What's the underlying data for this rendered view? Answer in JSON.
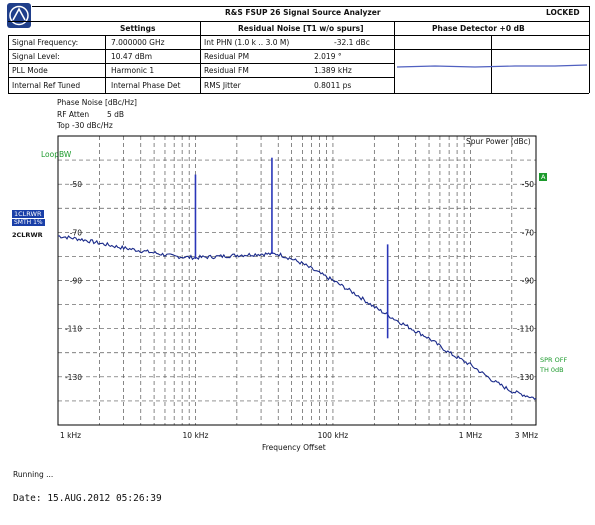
{
  "header": {
    "title": "R&S FSUP 26 Signal Source Analyzer",
    "status": "LOCKED"
  },
  "table": {
    "col_headers": [
      "Settings",
      "Residual Noise [T1 w/o spurs]",
      "Phase Detector +0 dB"
    ],
    "settings": [
      {
        "label": "Signal Frequency:",
        "value": "7.000000 GHz"
      },
      {
        "label": "Signal Level:",
        "value": "10.47 dBm"
      },
      {
        "label": "PLL Mode",
        "value": "Harmonic 1"
      },
      {
        "label": "Internal Ref Tuned",
        "value": "Internal Phase Det"
      }
    ],
    "residual": [
      {
        "label": "Int PHN (1.0 k .. 3.0 M)",
        "value": "-32.1 dBc"
      },
      {
        "label": "Residual PM",
        "value": "2.019 °"
      },
      {
        "label": "Residual FM",
        "value": "1.389 kHz"
      },
      {
        "label": "RMS Jitter",
        "value": "0.8011 ps"
      }
    ]
  },
  "plot_info": {
    "line1": "Phase Noise [dBc/Hz]",
    "line2_label": "RF Atten",
    "line2_value": "5 dB",
    "line3": "Top -30 dBc/Hz",
    "loopbw": "LoopBW",
    "spur_power": "Spur Power (dBc)",
    "trace1_badge": "1CLRWR",
    "trace1_sub": "SMTH 1%",
    "trace2_badge": "2CLRWR",
    "right_badge": "A",
    "spr_off": "SPR OFF",
    "th": "TH 0dB",
    "x_title": "Frequency Offset"
  },
  "chart_data": {
    "type": "line",
    "title": "Phase Noise [dBc/Hz]",
    "xlabel": "Frequency Offset",
    "ylabel": "",
    "x_scale": "log",
    "xlim_hz": [
      1000,
      3000000
    ],
    "ylim": [
      -150,
      -30
    ],
    "grid": true,
    "y_ticks": [
      -50,
      -70,
      -90,
      -110,
      -130
    ],
    "x_ticks": [
      {
        "hz": 1000,
        "label": "1 kHz"
      },
      {
        "hz": 10000,
        "label": "10 kHz"
      },
      {
        "hz": 100000,
        "label": "100 kHz"
      },
      {
        "hz": 1000000,
        "label": "1 MHz"
      },
      {
        "hz": 3000000,
        "label": "3 MHz"
      }
    ],
    "series": [
      {
        "x_hz": [
          1000,
          1500,
          2000,
          3000,
          5000,
          7000,
          10000,
          15000,
          20000,
          30000,
          40000,
          50000,
          60000,
          80000,
          100000,
          150000,
          200000,
          300000,
          500000,
          700000,
          1000000,
          1500000,
          2000000,
          3000000
        ],
        "y": [
          -71.5,
          -73,
          -74.5,
          -76.5,
          -78.5,
          -80,
          -80.5,
          -80,
          -79.5,
          -79,
          -79,
          -81,
          -83,
          -87,
          -90,
          -96,
          -101,
          -107,
          -114,
          -120,
          -125,
          -132,
          -136,
          -139
        ]
      }
    ],
    "spurs": [
      {
        "x_hz": 10000,
        "top": -46,
        "base": -81
      },
      {
        "x_hz": 36000,
        "top": -39,
        "base": -79
      },
      {
        "x_hz": 250000,
        "top": -75,
        "base": -114
      }
    ]
  },
  "footer": {
    "running": "Running ...",
    "date": "Date: 15.AUG.2012  05:26:39"
  },
  "colors": {
    "trace": "#1a2a8a",
    "spur": "#2a36b8",
    "accent": "#1c9a2c",
    "badge": "#1a3fa8",
    "logo": "#1f3e8a"
  }
}
